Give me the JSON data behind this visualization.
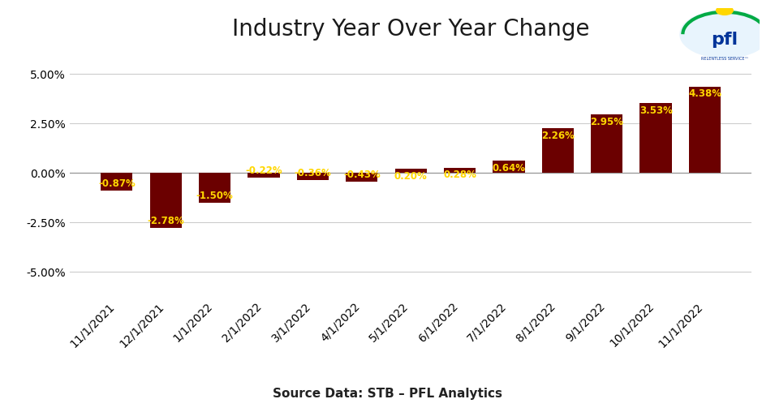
{
  "title": "Industry Year Over Year Change",
  "categories": [
    "11/1/2021",
    "12/1/2021",
    "1/1/2022",
    "2/1/2022",
    "3/1/2022",
    "4/1/2022",
    "5/1/2022",
    "6/1/2022",
    "7/1/2022",
    "8/1/2022",
    "9/1/2022",
    "10/1/2022",
    "11/1/2022"
  ],
  "values": [
    -0.87,
    -2.78,
    -1.5,
    -0.22,
    -0.36,
    -0.43,
    0.2,
    0.28,
    0.64,
    2.26,
    2.95,
    3.53,
    4.38
  ],
  "bar_color": "#6B0000",
  "label_color": "#FFD700",
  "ylim": [
    -6.25,
    6.25
  ],
  "yticks": [
    -5.0,
    -2.5,
    0.0,
    2.5,
    5.0
  ],
  "yticklabels": [
    "-5.00%",
    "-2.50%",
    "0.00%",
    "2.50%",
    "5.00%"
  ],
  "source_text": "Source Data: STB – PFL Analytics",
  "background_color": "#FFFFFF",
  "grid_color": "#CCCCCC",
  "title_fontsize": 20,
  "label_fontsize": 8.5,
  "tick_fontsize": 10,
  "source_fontsize": 11
}
